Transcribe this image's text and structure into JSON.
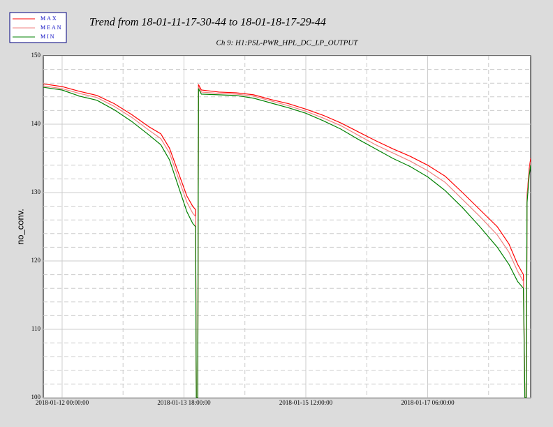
{
  "chart_data": {
    "type": "line",
    "title": "Trend from 18-01-11-17-30-44 to 18-01-18-17-29-44",
    "subtitle": "Ch 9: H1:PSL-PWR_HPL_DC_LP_OUTPUT",
    "y_label": "no_conv.",
    "x": [
      "2018-01-11 17:30:44",
      "2018-01-12 00:00:00",
      "2018-01-12 06:00:00",
      "2018-01-12 12:00:00",
      "2018-01-12 18:00:00",
      "2018-01-13 00:00:00",
      "2018-01-13 06:00:00",
      "2018-01-13 10:00:00",
      "2018-01-13 13:00:00",
      "2018-01-13 16:00:00",
      "2018-01-13 19:00:00",
      "2018-01-13 21:00:00",
      "2018-01-13 22:00:00",
      "2018-01-13 22:15:00",
      "2018-01-13 22:45:00",
      "2018-01-13 23:00:00",
      "2018-01-14 00:00:00",
      "2018-01-14 06:00:00",
      "2018-01-14 12:00:00",
      "2018-01-14 18:00:00",
      "2018-01-15 00:00:00",
      "2018-01-15 06:00:00",
      "2018-01-15 12:00:00",
      "2018-01-15 18:00:00",
      "2018-01-16 00:00:00",
      "2018-01-16 06:00:00",
      "2018-01-16 12:00:00",
      "2018-01-16 18:00:00",
      "2018-01-17 00:00:00",
      "2018-01-17 06:00:00",
      "2018-01-17 12:00:00",
      "2018-01-17 18:00:00",
      "2018-01-18 00:00:00",
      "2018-01-18 06:00:00",
      "2018-01-18 10:00:00",
      "2018-01-18 13:00:00",
      "2018-01-18 15:00:00",
      "2018-01-18 15:30:00",
      "2018-01-18 16:00:00",
      "2018-01-18 16:15:00",
      "2018-01-18 17:00:00",
      "2018-01-18 17:29:44"
    ],
    "series": [
      {
        "name": "MAX",
        "color": "#ff0000",
        "values": [
          145.9,
          145.5,
          144.8,
          144.2,
          143.0,
          141.4,
          139.6,
          138.6,
          136.5,
          133.0,
          129.5,
          128.0,
          127.5,
          100,
          100,
          145.8,
          145.0,
          144.7,
          144.6,
          144.3,
          143.6,
          143.0,
          142.2,
          141.3,
          140.2,
          138.9,
          137.6,
          136.4,
          135.3,
          134.0,
          132.4,
          130.0,
          127.5,
          125.0,
          122.5,
          119.5,
          118.0,
          100,
          100,
          129.5,
          133.5,
          135.0
        ]
      },
      {
        "name": "MEAN",
        "color": "#f08080",
        "values": [
          145.6,
          145.2,
          144.5,
          143.9,
          142.6,
          141.0,
          139.1,
          137.9,
          135.8,
          132.2,
          128.6,
          127.0,
          126.5,
          100,
          100,
          145.5,
          144.7,
          144.5,
          144.4,
          144.1,
          143.4,
          142.7,
          141.9,
          140.9,
          139.8,
          138.4,
          137.0,
          135.8,
          134.6,
          133.2,
          131.5,
          129.0,
          126.5,
          123.8,
          121.3,
          118.5,
          117.0,
          100,
          100,
          129.0,
          133.0,
          134.5
        ]
      },
      {
        "name": "MIN",
        "color": "#008000",
        "values": [
          145.4,
          145.0,
          144.1,
          143.5,
          142.1,
          140.4,
          138.4,
          137.0,
          134.8,
          131.0,
          127.2,
          125.5,
          125.0,
          100,
          100,
          145.2,
          144.4,
          144.3,
          144.2,
          143.8,
          143.1,
          142.4,
          141.6,
          140.5,
          139.3,
          137.8,
          136.4,
          135.0,
          133.8,
          132.3,
          130.3,
          127.8,
          125.0,
          122.0,
          119.5,
          117.0,
          116.0,
          100,
          100,
          128.5,
          132.5,
          134.0
        ]
      }
    ],
    "xlim": [
      "2018-01-11 17:30:44",
      "2018-01-18 17:29:44"
    ],
    "xticks": [
      "2018-01-12 00:00:00",
      "2018-01-13 18:00:00",
      "2018-01-15 12:00:00",
      "2018-01-17 06:00:00"
    ],
    "xminor": [
      "2018-01-12 21:00:00",
      "2018-01-14 15:00:00",
      "2018-01-16 09:00:00",
      "2018-01-18 03:00:00"
    ],
    "ylim": [
      100,
      150
    ],
    "yticks": [
      100,
      110,
      120,
      130,
      140,
      150
    ],
    "yminor": [
      102,
      104,
      106,
      108,
      112,
      114,
      116,
      118,
      122,
      124,
      126,
      128,
      132,
      134,
      136,
      138,
      142,
      144,
      146,
      148
    ],
    "grid": true
  }
}
